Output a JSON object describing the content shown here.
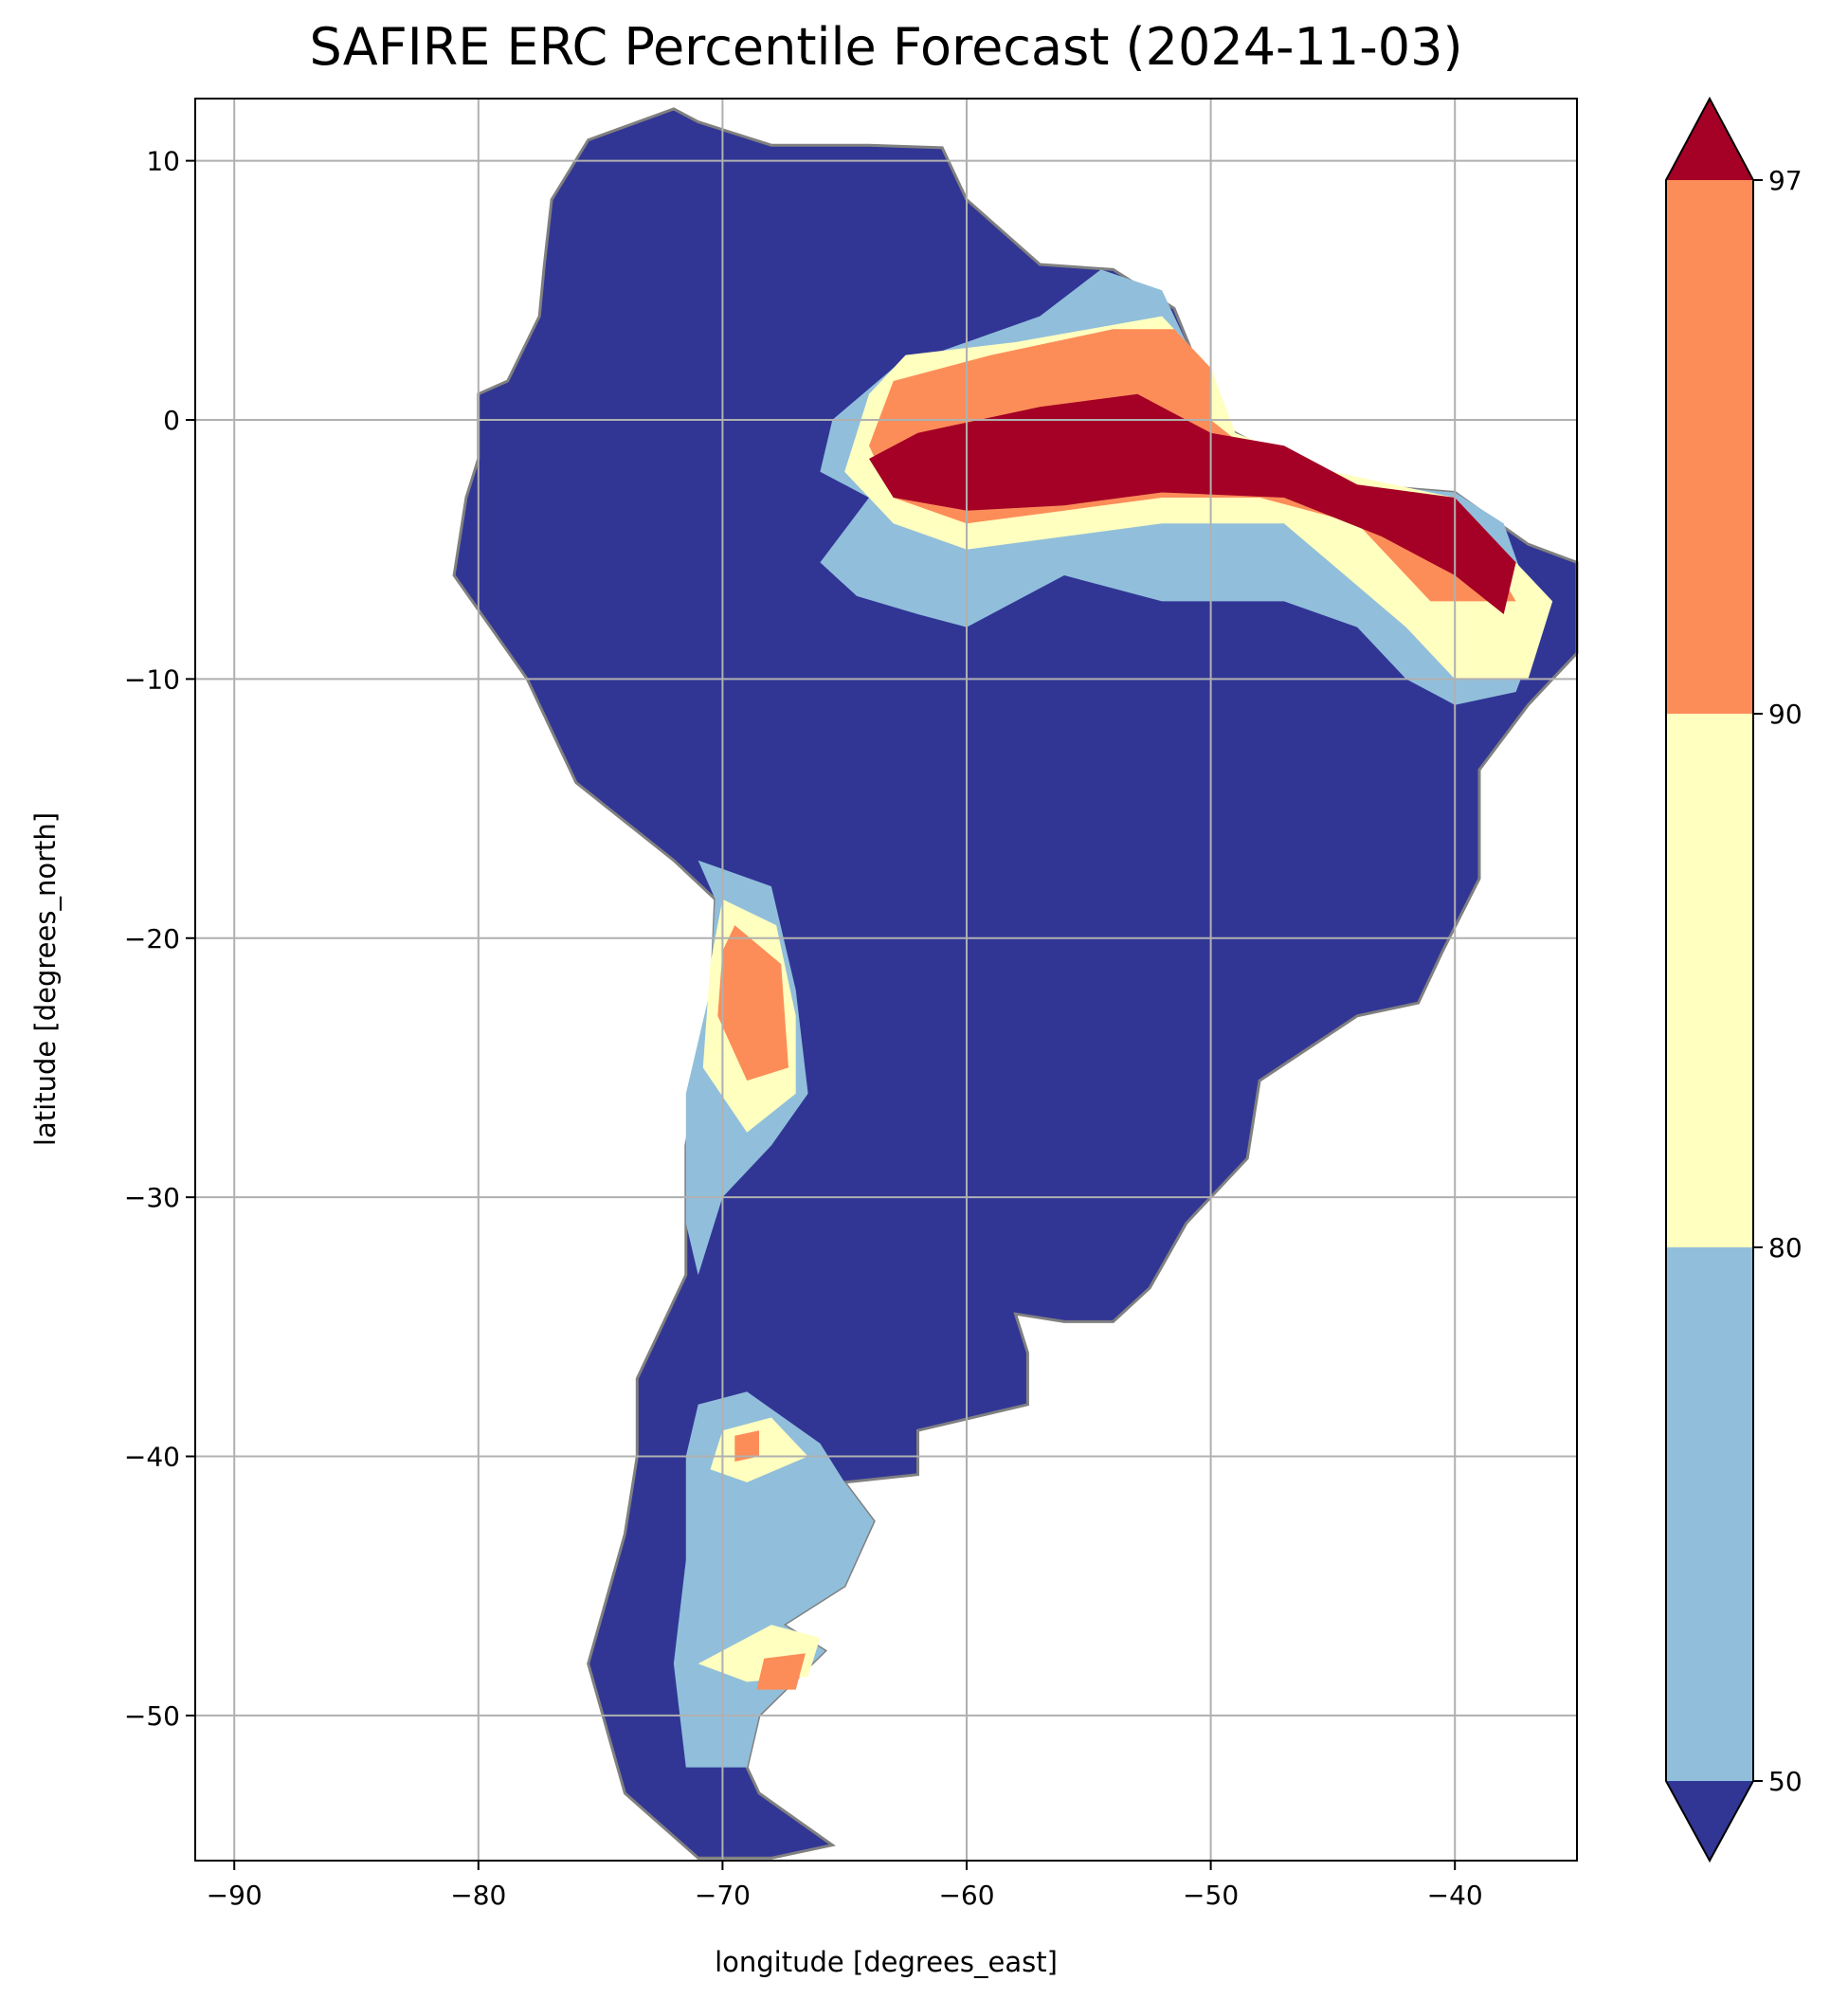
{
  "chart_data": {
    "type": "heatmap",
    "title": "SAFIRE ERC Percentile Forecast (2024-11-03)",
    "xlabel": "longitude [degrees_east]",
    "ylabel": "latitude [degrees_north]",
    "xlim": [
      -91.6,
      -35.0
    ],
    "ylim": [
      -55.6,
      12.4
    ],
    "grid": true,
    "xticks": [
      -90,
      -80,
      -70,
      -60,
      -50,
      -40
    ],
    "yticks": [
      10,
      0,
      -10,
      -20,
      -30,
      -40,
      -50
    ],
    "xtick_labels": [
      "−90",
      "−80",
      "−70",
      "−60",
      "−50",
      "−40"
    ],
    "ytick_labels": [
      "10",
      "0",
      "−10",
      "−20",
      "−30",
      "−40",
      "−50"
    ],
    "colorbar": {
      "boundaries": [
        50,
        80,
        90,
        97
      ],
      "tick_labels": [
        "50",
        "80",
        "90",
        "97"
      ],
      "extend": "both",
      "colors": {
        "under": "#313695",
        "50-80": "#91bfdb",
        "80-90": "#ffffbf",
        "90-97": "#fc8d59",
        "over": "#a50026"
      }
    },
    "land_color": "#313695",
    "border_color": "#808080",
    "regions": [
      {
        "name": "land",
        "class": "under",
        "points": [
          [
            -77,
            8.5
          ],
          [
            -75.5,
            10.8
          ],
          [
            -72,
            12
          ],
          [
            -71,
            11.5
          ],
          [
            -68,
            10.6
          ],
          [
            -64,
            10.6
          ],
          [
            -61,
            10.5
          ],
          [
            -60,
            8.5
          ],
          [
            -57,
            6
          ],
          [
            -54,
            5.8
          ],
          [
            -51.5,
            4.3
          ],
          [
            -50.5,
            2
          ],
          [
            -50,
            0
          ],
          [
            -48,
            -1
          ],
          [
            -44,
            -2.5
          ],
          [
            -40,
            -2.8
          ],
          [
            -37,
            -4.8
          ],
          [
            -35,
            -5.5
          ],
          [
            -35,
            -9
          ],
          [
            -37,
            -11
          ],
          [
            -39,
            -13.5
          ],
          [
            -39,
            -17.7
          ],
          [
            -40.5,
            -20.5
          ],
          [
            -41.5,
            -22.5
          ],
          [
            -44,
            -23
          ],
          [
            -48,
            -25.5
          ],
          [
            -48.5,
            -28.5
          ],
          [
            -51,
            -31
          ],
          [
            -52.5,
            -33.5
          ],
          [
            -54,
            -34.8
          ],
          [
            -56,
            -34.8
          ],
          [
            -58,
            -34.5
          ],
          [
            -57.5,
            -36
          ],
          [
            -57.5,
            -38
          ],
          [
            -62,
            -39
          ],
          [
            -62,
            -40.7
          ],
          [
            -65,
            -41
          ],
          [
            -63.8,
            -42.5
          ],
          [
            -65,
            -45
          ],
          [
            -67.5,
            -46.5
          ],
          [
            -65.8,
            -47.5
          ],
          [
            -68.5,
            -50
          ],
          [
            -69,
            -52
          ],
          [
            -68.5,
            -53
          ],
          [
            -65.5,
            -55
          ],
          [
            -68,
            -55.5
          ],
          [
            -71,
            -55.5
          ],
          [
            -74,
            -53
          ],
          [
            -75.5,
            -48
          ],
          [
            -74,
            -43
          ],
          [
            -73.5,
            -40
          ],
          [
            -73.5,
            -37
          ],
          [
            -71.5,
            -33
          ],
          [
            -71.5,
            -28
          ],
          [
            -70.5,
            -23
          ],
          [
            -70.3,
            -18.5
          ],
          [
            -72,
            -17
          ],
          [
            -76,
            -14
          ],
          [
            -78,
            -10
          ],
          [
            -81,
            -6
          ],
          [
            -80.5,
            -3
          ],
          [
            -80,
            -1.5
          ],
          [
            -80,
            1
          ],
          [
            -78.8,
            1.5
          ],
          [
            -77.5,
            4
          ],
          [
            -77.3,
            6
          ]
        ]
      },
      {
        "name": "amazon-band",
        "class": "50-80",
        "points": [
          [
            -64,
            -3
          ],
          [
            -66,
            -2
          ],
          [
            -65.5,
            0
          ],
          [
            -63,
            2
          ],
          [
            -60,
            3
          ],
          [
            -57,
            4
          ],
          [
            -54.5,
            5.8
          ],
          [
            -52,
            5
          ],
          [
            -51,
            3
          ],
          [
            -50,
            0
          ],
          [
            -48,
            -1
          ],
          [
            -44,
            -2.5
          ],
          [
            -40,
            -2.8
          ],
          [
            -38,
            -4
          ],
          [
            -36.5,
            -8
          ],
          [
            -37.5,
            -10.5
          ],
          [
            -40,
            -11
          ],
          [
            -42,
            -10
          ],
          [
            -44,
            -8
          ],
          [
            -47,
            -7
          ],
          [
            -52,
            -7
          ],
          [
            -56,
            -6
          ],
          [
            -60,
            -8
          ],
          [
            -62,
            -7.5
          ],
          [
            -64.5,
            -6.8
          ],
          [
            -66,
            -5.5
          ]
        ]
      },
      {
        "name": "amazon-band",
        "class": "80-90",
        "points": [
          [
            -65,
            -2
          ],
          [
            -64,
            1
          ],
          [
            -62.5,
            2.5
          ],
          [
            -58,
            3
          ],
          [
            -52,
            4
          ],
          [
            -50,
            2
          ],
          [
            -49,
            -0.5
          ],
          [
            -45,
            -2
          ],
          [
            -40,
            -3
          ],
          [
            -38,
            -5
          ],
          [
            -36,
            -7
          ],
          [
            -37,
            -10
          ],
          [
            -40,
            -10
          ],
          [
            -42,
            -8
          ],
          [
            -47,
            -4
          ],
          [
            -52,
            -4
          ],
          [
            -56,
            -4.5
          ],
          [
            -60,
            -5
          ],
          [
            -63,
            -4
          ]
        ]
      },
      {
        "name": "amazon-band",
        "class": "90-97",
        "points": [
          [
            -64,
            -1
          ],
          [
            -63,
            1.5
          ],
          [
            -59,
            2.5
          ],
          [
            -54,
            3.5
          ],
          [
            -51.5,
            3.5
          ],
          [
            -50,
            2
          ],
          [
            -50,
            0
          ],
          [
            -48,
            -1.5
          ],
          [
            -45,
            -3
          ],
          [
            -40,
            -3
          ],
          [
            -37.5,
            -7
          ],
          [
            -41,
            -7
          ],
          [
            -44,
            -4
          ],
          [
            -48,
            -3
          ],
          [
            -52,
            -3
          ],
          [
            -56,
            -3.5
          ],
          [
            -60,
            -4
          ],
          [
            -63,
            -3
          ]
        ]
      },
      {
        "name": "amazon-band",
        "class": "over",
        "points": [
          [
            -64,
            -1.5
          ],
          [
            -62,
            -0.5
          ],
          [
            -57,
            0.5
          ],
          [
            -53,
            1
          ],
          [
            -50,
            -0.5
          ],
          [
            -47,
            -1
          ],
          [
            -44,
            -2.5
          ],
          [
            -40,
            -3
          ],
          [
            -37.5,
            -5.5
          ],
          [
            -38,
            -7.5
          ],
          [
            -40,
            -6
          ],
          [
            -43,
            -4.5
          ],
          [
            -47,
            -3
          ],
          [
            -52,
            -2.8
          ],
          [
            -56,
            -3.3
          ],
          [
            -60,
            -3.5
          ],
          [
            -63,
            -3
          ]
        ]
      },
      {
        "name": "andes-strip",
        "class": "50-80",
        "points": [
          [
            -71,
            -17
          ],
          [
            -68,
            -18
          ],
          [
            -67,
            -22
          ],
          [
            -66.5,
            -26
          ],
          [
            -68,
            -28
          ],
          [
            -70,
            -30
          ],
          [
            -71,
            -33
          ],
          [
            -71.5,
            -31
          ],
          [
            -71.5,
            -26
          ],
          [
            -70.5,
            -22
          ],
          [
            -70.3,
            -18.5
          ]
        ]
      },
      {
        "name": "andes-strip",
        "class": "80-90",
        "points": [
          [
            -70,
            -18.5
          ],
          [
            -67.8,
            -19.5
          ],
          [
            -67,
            -23
          ],
          [
            -67,
            -26
          ],
          [
            -69,
            -27.5
          ],
          [
            -70.8,
            -25
          ],
          [
            -70.5,
            -21
          ]
        ]
      },
      {
        "name": "andes-strip",
        "class": "90-97",
        "points": [
          [
            -69.5,
            -19.5
          ],
          [
            -67.6,
            -21
          ],
          [
            -67.3,
            -25
          ],
          [
            -69,
            -25.5
          ],
          [
            -70.2,
            -23
          ],
          [
            -70,
            -20.5
          ]
        ]
      },
      {
        "name": "patagonia",
        "class": "50-80",
        "points": [
          [
            -71,
            -38
          ],
          [
            -69,
            -37.5
          ],
          [
            -66,
            -39.5
          ],
          [
            -65,
            -41
          ],
          [
            -63.8,
            -42.5
          ],
          [
            -65,
            -45
          ],
          [
            -67.5,
            -46.5
          ],
          [
            -65.8,
            -47.5
          ],
          [
            -68.5,
            -50
          ],
          [
            -69,
            -52
          ],
          [
            -71.5,
            -52
          ],
          [
            -72,
            -48
          ],
          [
            -71.5,
            -44
          ],
          [
            -71.5,
            -40
          ]
        ]
      },
      {
        "name": "patagonia",
        "class": "80-90",
        "points": [
          [
            -70,
            -39
          ],
          [
            -68,
            -38.5
          ],
          [
            -66.5,
            -40
          ],
          [
            -69,
            -41
          ],
          [
            -70.5,
            -40.5
          ]
        ]
      },
      {
        "name": "patagonia",
        "class": "80-90",
        "points": [
          [
            -68,
            -46.5
          ],
          [
            -66,
            -47
          ],
          [
            -66.5,
            -48.5
          ],
          [
            -69,
            -48.7
          ],
          [
            -71,
            -48
          ]
        ]
      },
      {
        "name": "patagonia",
        "class": "90-97",
        "points": [
          [
            -68.3,
            -47.8
          ],
          [
            -66.6,
            -47.6
          ],
          [
            -67,
            -49
          ],
          [
            -68.6,
            -49
          ]
        ]
      },
      {
        "name": "patagonia",
        "class": "90-97",
        "points": [
          [
            -69.5,
            -39.2
          ],
          [
            -68.5,
            -39
          ],
          [
            -68.5,
            -40
          ],
          [
            -69.5,
            -40.2
          ]
        ]
      }
    ]
  }
}
